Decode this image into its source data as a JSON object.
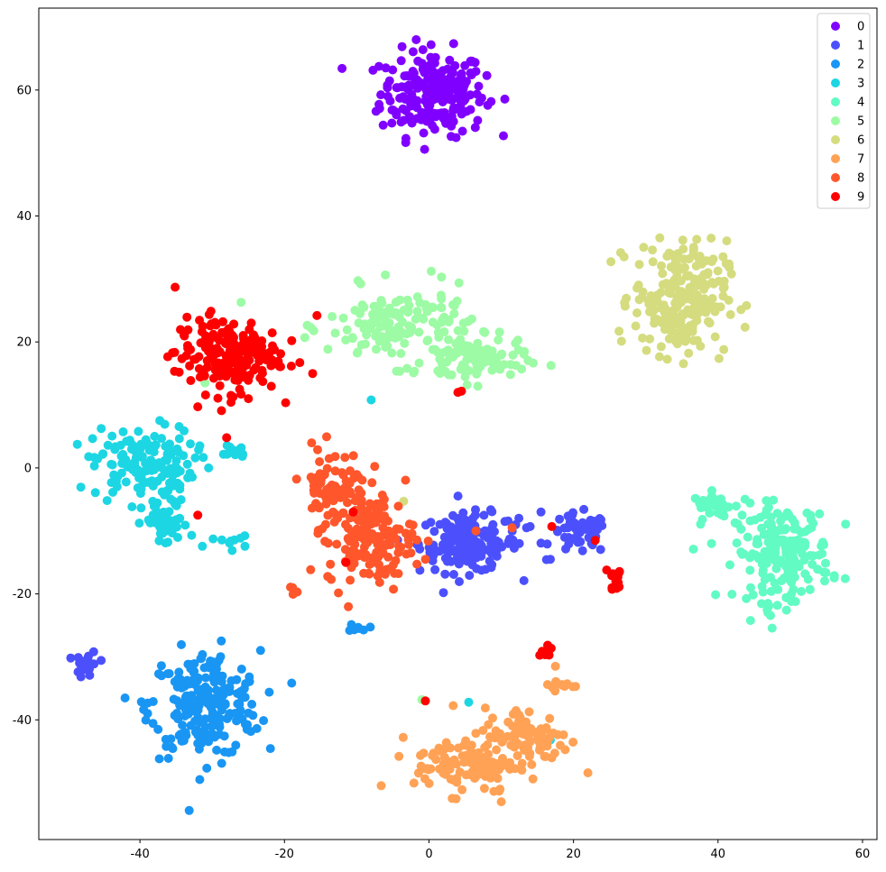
{
  "chart_data": {
    "type": "scatter",
    "title": "",
    "xlabel": "",
    "ylabel": "",
    "xlim": [
      -54,
      62
    ],
    "ylim": [
      -59,
      73
    ],
    "xticks": [
      -40,
      -20,
      0,
      20,
      40,
      60
    ],
    "yticks": [
      -40,
      -20,
      0,
      20,
      40,
      60
    ],
    "grid": false,
    "legend_position": "top-right",
    "colors": [
      "#8000ff",
      "#4c50fc",
      "#1996f3",
      "#1dd6e3",
      "#62fbc4",
      "#9cfba4",
      "#d4dc7f",
      "#ffa256",
      "#ff562c",
      "#ff0000"
    ],
    "series": [
      {
        "name": "0",
        "clusters": [
          {
            "cx": 0.5,
            "cy": 59.5,
            "sx": 3.6,
            "sy": 3.4,
            "n": 230
          }
        ],
        "points": []
      },
      {
        "name": "1",
        "clusters": [
          {
            "cx": 5.5,
            "cy": -12.0,
            "sx": 3.4,
            "sy": 2.3,
            "n": 160
          },
          {
            "cx": 20.8,
            "cy": -10.5,
            "sx": 2.0,
            "sy": 1.6,
            "n": 55
          },
          {
            "cx": -47.3,
            "cy": -31.3,
            "sx": 0.8,
            "sy": 1.1,
            "n": 25
          }
        ],
        "points": [
          [
            10.5,
            -8.5
          ],
          [
            12.0,
            -9.0
          ],
          [
            12.5,
            -12.0
          ],
          [
            13.5,
            -9.5
          ],
          [
            15.5,
            -7.0
          ],
          [
            16.8,
            -14.5
          ],
          [
            14.0,
            -9.3
          ]
        ]
      },
      {
        "name": "2",
        "clusters": [
          {
            "cx": -31.0,
            "cy": -37.5,
            "sx": 3.8,
            "sy": 4.2,
            "n": 230
          },
          {
            "cx": -9.8,
            "cy": -25.3,
            "sx": 0.7,
            "sy": 0.3,
            "n": 8
          }
        ],
        "points": []
      },
      {
        "name": "3",
        "clusters": [
          {
            "cx": -39.5,
            "cy": 0.5,
            "sx": 3.5,
            "sy": 3.0,
            "n": 150
          },
          {
            "cx": -36.5,
            "cy": -9.0,
            "sx": 1.6,
            "sy": 1.8,
            "n": 45
          },
          {
            "cx": -27.0,
            "cy": 2.8,
            "sx": 0.9,
            "sy": 0.7,
            "n": 15
          },
          {
            "cx": -28.0,
            "cy": -11.8,
            "sx": 1.5,
            "sy": 0.5,
            "n": 10
          }
        ],
        "points": [
          [
            -8.0,
            10.8
          ],
          [
            5.5,
            -37.2
          ],
          [
            16.8,
            -43.2
          ],
          [
            -30.5,
            0.0
          ],
          [
            -34.5,
            -8.0
          ]
        ]
      },
      {
        "name": "4",
        "clusters": [
          {
            "cx": 49.0,
            "cy": -13.5,
            "sx": 3.3,
            "sy": 3.8,
            "n": 190
          },
          {
            "cx": 39.5,
            "cy": -6.0,
            "sx": 1.5,
            "sy": 1.0,
            "n": 30
          }
        ],
        "points": [
          [
            46.8,
            -22.5
          ],
          [
            46.9,
            -23.0
          ]
        ]
      },
      {
        "name": "5",
        "clusters": [
          {
            "cx": -4.0,
            "cy": 22.5,
            "sx": 5.0,
            "sy": 3.0,
            "n": 150
          },
          {
            "cx": 6.5,
            "cy": 17.0,
            "sx": 3.5,
            "sy": 1.8,
            "n": 90
          }
        ],
        "points": [
          [
            -26.0,
            26.3
          ],
          [
            -31.0,
            13.5
          ],
          [
            -1.0,
            -36.8
          ]
        ]
      },
      {
        "name": "6",
        "clusters": [
          {
            "cx": 34.8,
            "cy": 27.0,
            "sx": 3.2,
            "sy": 4.5,
            "n": 230
          }
        ],
        "points": [
          [
            -3.5,
            -5.3
          ],
          [
            27.0,
            33.5
          ]
        ]
      },
      {
        "name": "7",
        "clusters": [
          {
            "cx": 5.0,
            "cy": -47.0,
            "sx": 3.5,
            "sy": 2.3,
            "n": 110
          },
          {
            "cx": 13.5,
            "cy": -43.0,
            "sx": 3.0,
            "sy": 2.5,
            "n": 100
          },
          {
            "cx": 18.2,
            "cy": -34.6,
            "sx": 1.2,
            "sy": 0.5,
            "n": 12
          }
        ],
        "points": [
          [
            10.0,
            -53.0
          ],
          [
            17.5,
            -31.5
          ]
        ]
      },
      {
        "name": "8",
        "clusters": [
          {
            "cx": -13.0,
            "cy": -3.0,
            "sx": 2.3,
            "sy": 3.2,
            "n": 80
          },
          {
            "cx": -8.0,
            "cy": -11.5,
            "sx": 3.0,
            "sy": 3.5,
            "n": 140
          },
          {
            "cx": -18.8,
            "cy": -19.5,
            "sx": 0.3,
            "sy": 0.5,
            "n": 4
          }
        ],
        "points": [
          [
            6.5,
            -10.0
          ],
          [
            11.5,
            -9.5
          ],
          [
            -0.5,
            -14.5
          ],
          [
            -2.5,
            -13.5
          ]
        ]
      },
      {
        "name": "9",
        "clusters": [
          {
            "cx": -28.0,
            "cy": 18.0,
            "sx": 3.6,
            "sy": 3.0,
            "n": 190
          },
          {
            "cx": 25.8,
            "cy": -18.0,
            "sx": 0.7,
            "sy": 1.3,
            "n": 14
          },
          {
            "cx": 16.2,
            "cy": -29.5,
            "sx": 0.5,
            "sy": 0.7,
            "n": 10
          }
        ],
        "points": [
          [
            -15.5,
            24.2
          ],
          [
            4.0,
            12.0
          ],
          [
            4.5,
            12.2
          ],
          [
            -32.0,
            9.7
          ],
          [
            -28.0,
            4.8
          ],
          [
            -32.0,
            -7.5
          ],
          [
            -11.5,
            -15.0
          ],
          [
            -10.5,
            -7.0
          ],
          [
            -0.5,
            -37.0
          ],
          [
            23.0,
            -11.5
          ],
          [
            17.0,
            -9.3
          ],
          [
            -25.0,
            11.0
          ]
        ]
      }
    ]
  }
}
